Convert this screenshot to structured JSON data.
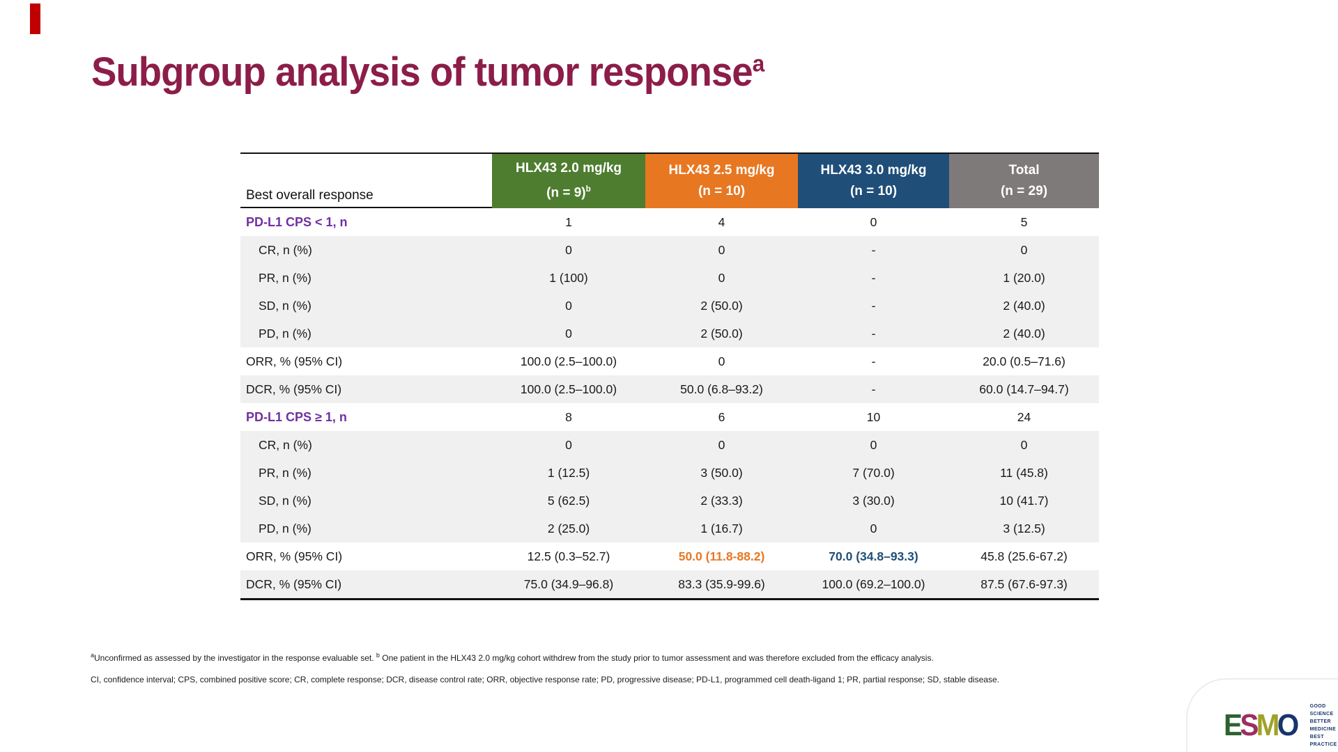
{
  "slide": {
    "accent_bar_color": "#c00000",
    "title": {
      "text": "Subgroup analysis of tumor response",
      "sup": "a",
      "color": "#8c1d49"
    }
  },
  "table": {
    "row_header": "Best overall response",
    "columns": [
      {
        "line1": "HLX43 2.0 mg/kg",
        "n": "(n = 9)",
        "n_sup": "b",
        "color": "#4e7d30"
      },
      {
        "line1": "HLX43 2.5 mg/kg",
        "n": "(n = 10)",
        "n_sup": "",
        "color": "#e87722"
      },
      {
        "line1": "HLX43 3.0 mg/kg",
        "n": "(n = 10)",
        "n_sup": "",
        "color": "#7f7a7a"
      },
      {
        "line1": "Total",
        "n": "(n = 29)",
        "n_sup": "",
        "color": "#7f7a7a"
      }
    ],
    "accent_colors": {
      "orange": "#e87722",
      "blue": "#1f4e79",
      "section_purple": "#7030a0",
      "col3_blue": "#1f4e79"
    },
    "rows": [
      {
        "label": "PD-L1 CPS < 1, n",
        "kind": "section",
        "bg": "white",
        "values": [
          "1",
          "4",
          "0",
          "5"
        ]
      },
      {
        "label": "CR, n (%)",
        "kind": "sub",
        "bg": "gray",
        "values": [
          "0",
          "0",
          "-",
          "0"
        ]
      },
      {
        "label": "PR, n (%)",
        "kind": "sub",
        "bg": "gray",
        "values": [
          "1 (100)",
          "0",
          "-",
          "1 (20.0)"
        ]
      },
      {
        "label": "SD, n (%)",
        "kind": "sub",
        "bg": "gray",
        "values": [
          "0",
          "2 (50.0)",
          "-",
          "2 (40.0)"
        ]
      },
      {
        "label": "PD, n (%)",
        "kind": "sub",
        "bg": "gray",
        "values": [
          "0",
          "2 (50.0)",
          "-",
          "2 (40.0)"
        ]
      },
      {
        "label": "ORR, % (95% CI)",
        "kind": "stat",
        "bg": "white",
        "values": [
          "100.0 (2.5–100.0)",
          "0",
          "-",
          "20.0 (0.5–71.6)"
        ]
      },
      {
        "label": "DCR, % (95% CI)",
        "kind": "stat",
        "bg": "gray",
        "values": [
          "100.0 (2.5–100.0)",
          "50.0 (6.8–93.2)",
          "-",
          "60.0 (14.7–94.7)"
        ]
      },
      {
        "label": "PD-L1 CPS ≥ 1, n",
        "kind": "section",
        "bg": "white",
        "values": [
          "8",
          "6",
          "10",
          "24"
        ]
      },
      {
        "label": "CR, n (%)",
        "kind": "sub",
        "bg": "gray",
        "values": [
          "0",
          "0",
          "0",
          "0"
        ]
      },
      {
        "label": "PR, n (%)",
        "kind": "sub",
        "bg": "gray",
        "values": [
          "1 (12.5)",
          "3 (50.0)",
          "7 (70.0)",
          "11 (45.8)"
        ]
      },
      {
        "label": "SD, n (%)",
        "kind": "sub",
        "bg": "gray",
        "values": [
          "5 (62.5)",
          "2 (33.3)",
          "3 (30.0)",
          "10 (41.7)"
        ]
      },
      {
        "label": "PD, n (%)",
        "kind": "sub",
        "bg": "gray",
        "values": [
          "2 (25.0)",
          "1 (16.7)",
          "0",
          "3 (12.5)"
        ]
      },
      {
        "label": "ORR, % (95% CI)",
        "kind": "stat",
        "bg": "white",
        "values": [
          "12.5 (0.3–52.7)",
          "50.0 (11.8-88.2)",
          "70.0 (34.8–93.3)",
          "45.8 (25.6-67.2)"
        ],
        "value_colors": [
          null,
          "orange",
          "blue",
          null
        ]
      },
      {
        "label": "DCR, % (95% CI)",
        "kind": "stat",
        "bg": "gray",
        "values": [
          "75.0 (34.9–96.8)",
          "83.3 (35.9-99.6)",
          "100.0 (69.2–100.0)",
          "87.5 (67.6-97.3)"
        ]
      }
    ]
  },
  "footnotes": {
    "marker_a": "a",
    "line1_a": "Unconfirmed as assessed by the investigator in the response evaluable set. ",
    "marker_b": "b",
    "line1_b": " One patient in the HLX43 2.0 mg/kg cohort withdrew from the study prior to tumor assessment and was therefore excluded from the efficacy analysis.",
    "line2": "CI, confidence interval; CPS, combined positive score; CR, complete response; DCR, disease control rate; ORR, objective response rate; PD, progressive disease; PD-L1, programmed cell death-ligand 1; PR, partial response; SD, stable disease."
  },
  "logo": {
    "letters": [
      {
        "ch": "E",
        "color": "#2d6230"
      },
      {
        "ch": "S",
        "color": "#9c2f62"
      },
      {
        "ch": "M",
        "color": "#9fa226"
      },
      {
        "ch": "O",
        "color": "#17356b"
      }
    ],
    "tagline": [
      "GOOD SCIENCE",
      "BETTER MEDICINE",
      "BEST PRACTICE"
    ],
    "tagline_color": "#17356b"
  }
}
